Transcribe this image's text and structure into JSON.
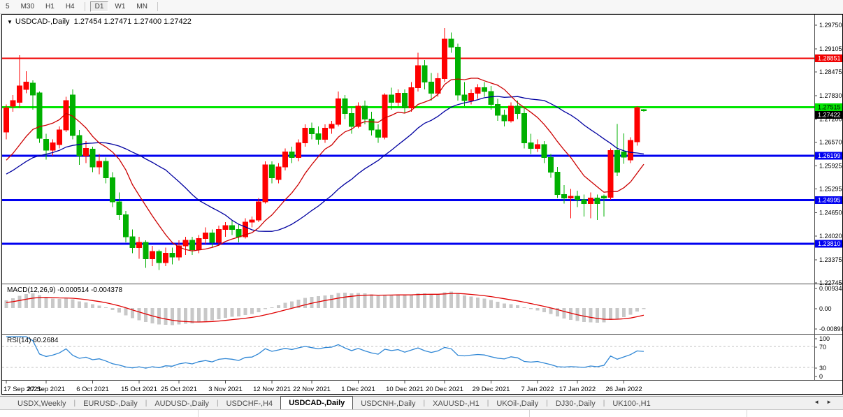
{
  "toolbar": {
    "buttons": [
      {
        "label": "5"
      },
      {
        "label": "M30"
      },
      {
        "label": "H1"
      },
      {
        "label": "H4"
      },
      {
        "sep": true
      },
      {
        "label": "D1",
        "active": true
      },
      {
        "label": "W1"
      },
      {
        "label": "MN"
      },
      {
        "sep": true
      }
    ]
  },
  "window": {
    "dropdown_arrow": "▼",
    "title_symbol": "USDCAD-,Daily",
    "title_ohlc": "1.27454 1.27471 1.27400 1.27422"
  },
  "chart_data": {
    "type": "candlestick",
    "symbol": "USDCAD-,Daily",
    "title": "USDCAD-,Daily 1.27454 1.27471 1.27400 1.27422",
    "current_bar": {
      "open": 1.27454,
      "high": 1.27471,
      "low": 1.274,
      "close": 1.27422
    },
    "y_range": {
      "top": 1.2975,
      "bottom": 1.22745
    },
    "price_axis_ticks": [
      "1.29750",
      "1.29105",
      "1.28475",
      "1.27830",
      "1.27200",
      "1.26570",
      "1.25925",
      "1.25295",
      "1.24650",
      "1.24020",
      "1.23375",
      "1.22745"
    ],
    "price_levels": [
      {
        "price": 1.28851,
        "label": "1.28851",
        "color": "#f00000",
        "line_width": 2,
        "text_color": "#ffffff"
      },
      {
        "price": 1.27515,
        "label": "1.27515",
        "color": "#00e500",
        "line_width": 3,
        "text_color": "#000000"
      },
      {
        "price": 1.26199,
        "label": "1.26199",
        "color": "#0000f0",
        "line_width": 3,
        "text_color": "#ffffff"
      },
      {
        "price": 1.24995,
        "label": "1.24995",
        "color": "#0000f0",
        "line_width": 3,
        "text_color": "#ffffff"
      },
      {
        "price": 1.2381,
        "label": "1.23810",
        "color": "#0000f0",
        "line_width": 3,
        "text_color": "#ffffff"
      }
    ],
    "bid_tag": {
      "price": 1.27422,
      "label": "1.27422",
      "bg": "#000000",
      "text_color": "#ffffff"
    },
    "date_ticks": [
      {
        "index": 0,
        "label": "17 Sep 2021"
      },
      {
        "index": 6,
        "label": "27 Sep 2021"
      },
      {
        "index": 13,
        "label": "6 Oct 2021"
      },
      {
        "index": 20,
        "label": "15 Oct 2021"
      },
      {
        "index": 26,
        "label": "25 Oct 2021"
      },
      {
        "index": 33,
        "label": "3 Nov 2021"
      },
      {
        "index": 40,
        "label": "12 Nov 2021"
      },
      {
        "index": 46,
        "label": "22 Nov 2021"
      },
      {
        "index": 53,
        "label": "1 Dec 2021"
      },
      {
        "index": 60,
        "label": "10 Dec 2021"
      },
      {
        "index": 66,
        "label": "20 Dec 2021"
      },
      {
        "index": 73,
        "label": "29 Dec 2021"
      },
      {
        "index": 80,
        "label": "7 Jan 2022"
      },
      {
        "index": 86,
        "label": "17 Jan 2022"
      },
      {
        "index": 93,
        "label": "26 Jan 2022"
      }
    ],
    "candles_ohlc": [
      [
        1.2685,
        1.276,
        1.2665,
        1.275
      ],
      [
        1.2755,
        1.2785,
        1.274,
        1.277
      ],
      [
        1.2765,
        1.2893,
        1.275,
        1.281
      ],
      [
        1.28,
        1.285,
        1.279,
        1.282
      ],
      [
        1.2817,
        1.2825,
        1.2745,
        1.2785
      ],
      [
        1.2791,
        1.2795,
        1.2655,
        1.2667
      ],
      [
        1.2665,
        1.268,
        1.261,
        1.2635
      ],
      [
        1.2635,
        1.2665,
        1.262,
        1.2655
      ],
      [
        1.265,
        1.27,
        1.264,
        1.269
      ],
      [
        1.269,
        1.278,
        1.2685,
        1.277
      ],
      [
        1.2785,
        1.28,
        1.2665,
        1.2675
      ],
      [
        1.2675,
        1.269,
        1.2595,
        1.262
      ],
      [
        1.262,
        1.266,
        1.26,
        1.264
      ],
      [
        1.2638,
        1.2645,
        1.2575,
        1.259
      ],
      [
        1.259,
        1.2625,
        1.257,
        1.2605
      ],
      [
        1.2605,
        1.2615,
        1.2545,
        1.256
      ],
      [
        1.256,
        1.2575,
        1.248,
        1.2495
      ],
      [
        1.2495,
        1.252,
        1.2445,
        1.246
      ],
      [
        1.246,
        1.247,
        1.2385,
        1.24
      ],
      [
        1.24,
        1.242,
        1.2355,
        1.237
      ],
      [
        1.237,
        1.24,
        1.234,
        1.2385
      ],
      [
        1.2385,
        1.239,
        1.2315,
        1.234
      ],
      [
        1.234,
        1.2375,
        1.232,
        1.236
      ],
      [
        1.236,
        1.2365,
        1.231,
        1.233
      ],
      [
        1.233,
        1.237,
        1.232,
        1.2355
      ],
      [
        1.2355,
        1.237,
        1.2325,
        1.2345
      ],
      [
        1.2345,
        1.239,
        1.2335,
        1.2375
      ],
      [
        1.2375,
        1.24,
        1.235,
        1.239
      ],
      [
        1.239,
        1.24,
        1.235,
        1.2365
      ],
      [
        1.2365,
        1.2405,
        1.2355,
        1.2395
      ],
      [
        1.2395,
        1.2425,
        1.238,
        1.241
      ],
      [
        1.241,
        1.242,
        1.237,
        1.2385
      ],
      [
        1.2385,
        1.243,
        1.2375,
        1.242
      ],
      [
        1.242,
        1.244,
        1.24,
        1.243
      ],
      [
        1.243,
        1.2445,
        1.2405,
        1.242
      ],
      [
        1.242,
        1.2435,
        1.2385,
        1.24
      ],
      [
        1.24,
        1.245,
        1.2395,
        1.244
      ],
      [
        1.244,
        1.2455,
        1.2425,
        1.2445
      ],
      [
        1.2445,
        1.2505,
        1.244,
        1.2495
      ],
      [
        1.2495,
        1.2605,
        1.249,
        1.2595
      ],
      [
        1.2595,
        1.2605,
        1.2545,
        1.256
      ],
      [
        1.2555,
        1.26,
        1.2545,
        1.259
      ],
      [
        1.259,
        1.264,
        1.258,
        1.263
      ],
      [
        1.263,
        1.2645,
        1.26,
        1.2615
      ],
      [
        1.2615,
        1.2665,
        1.2605,
        1.2655
      ],
      [
        1.2655,
        1.2705,
        1.2645,
        1.2695
      ],
      [
        1.2695,
        1.271,
        1.2665,
        1.268
      ],
      [
        1.268,
        1.27,
        1.265,
        1.2665
      ],
      [
        1.2665,
        1.2705,
        1.2655,
        1.2695
      ],
      [
        1.2695,
        1.2715,
        1.268,
        1.2705
      ],
      [
        1.2705,
        1.2795,
        1.27,
        1.2775
      ],
      [
        1.2775,
        1.2785,
        1.272,
        1.2735
      ],
      [
        1.2735,
        1.275,
        1.268,
        1.27
      ],
      [
        1.27,
        1.2765,
        1.2695,
        1.2755
      ],
      [
        1.2755,
        1.277,
        1.2705,
        1.272
      ],
      [
        1.272,
        1.274,
        1.2675,
        1.269
      ],
      [
        1.269,
        1.2705,
        1.2655,
        1.267
      ],
      [
        1.267,
        1.279,
        1.2665,
        1.2785
      ],
      [
        1.2785,
        1.2805,
        1.2745,
        1.2765
      ],
      [
        1.2765,
        1.28,
        1.2755,
        1.279
      ],
      [
        1.279,
        1.28,
        1.2735,
        1.275
      ],
      [
        1.275,
        1.282,
        1.274,
        1.2805
      ],
      [
        1.2805,
        1.29,
        1.2795,
        1.2865
      ],
      [
        1.2865,
        1.288,
        1.28,
        1.282
      ],
      [
        1.282,
        1.2845,
        1.277,
        1.279
      ],
      [
        1.279,
        1.2845,
        1.278,
        1.283
      ],
      [
        1.283,
        1.2967,
        1.282,
        1.2937
      ],
      [
        1.2937,
        1.2955,
        1.29,
        1.2915
      ],
      [
        1.2915,
        1.2925,
        1.277,
        1.2785
      ],
      [
        1.2785,
        1.282,
        1.2755,
        1.277
      ],
      [
        1.277,
        1.28,
        1.276,
        1.279
      ],
      [
        1.279,
        1.2815,
        1.2775,
        1.2805
      ],
      [
        1.2805,
        1.282,
        1.278,
        1.2795
      ],
      [
        1.2795,
        1.281,
        1.2745,
        1.276
      ],
      [
        1.276,
        1.2775,
        1.2715,
        1.273
      ],
      [
        1.273,
        1.2745,
        1.27,
        1.2715
      ],
      [
        1.2715,
        1.2765,
        1.271,
        1.2755
      ],
      [
        1.2755,
        1.277,
        1.272,
        1.2735
      ],
      [
        1.2735,
        1.275,
        1.264,
        1.2655
      ],
      [
        1.2655,
        1.268,
        1.2625,
        1.264
      ],
      [
        1.264,
        1.2665,
        1.263,
        1.265
      ],
      [
        1.265,
        1.266,
        1.26,
        1.2615
      ],
      [
        1.2615,
        1.2625,
        1.256,
        1.2575
      ],
      [
        1.2575,
        1.259,
        1.2505,
        1.2515
      ],
      [
        1.2515,
        1.254,
        1.249,
        1.2505
      ],
      [
        1.2505,
        1.253,
        1.245,
        1.251
      ],
      [
        1.251,
        1.2525,
        1.248,
        1.25
      ],
      [
        1.25,
        1.2515,
        1.2455,
        1.249
      ],
      [
        1.249,
        1.252,
        1.245,
        1.2505
      ],
      [
        1.2505,
        1.2515,
        1.2445,
        1.249
      ],
      [
        1.251,
        1.2515,
        1.2455,
        1.2505
      ],
      [
        1.2507,
        1.264,
        1.25,
        1.2634
      ],
      [
        1.2634,
        1.2706,
        1.2565,
        1.2575
      ],
      [
        1.263,
        1.2681,
        1.2598,
        1.2616
      ],
      [
        1.2609,
        1.267,
        1.26,
        1.2662
      ],
      [
        1.2658,
        1.2755,
        1.2648,
        1.2751
      ],
      [
        1.27454,
        1.27471,
        1.274,
        1.27422
      ]
    ],
    "warmup_closes_for_indicator_continuity": [
      1.248,
      1.247,
      1.2485,
      1.2495,
      1.249,
      1.2505,
      1.2515,
      1.251,
      1.252,
      1.253,
      1.2525,
      1.2535,
      1.2545,
      1.254,
      1.255,
      1.256,
      1.2555,
      1.2565,
      1.2575,
      1.257,
      1.258,
      1.2585,
      1.258,
      1.259,
      1.2595,
      1.259,
      1.2595,
      1.26,
      1.2595,
      1.26
    ],
    "indicators": {
      "ma_fast_period": 10,
      "ma_slow_period": 25,
      "macd": {
        "label": "MACD(12,26,9)",
        "values_text": "-0.000514 -0.004378",
        "fast": 12,
        "slow": 26,
        "signal": 9,
        "axis": {
          "max": "0.009345",
          "zero": "0.00",
          "min": "-0.008903"
        }
      },
      "rsi": {
        "label": "RSI(14)",
        "value_text": "60.2684",
        "period": 14,
        "axis": [
          "100",
          "70",
          "30",
          "0"
        ],
        "levels": [
          70,
          30
        ]
      }
    },
    "colors": {
      "up": "#fe0000",
      "down": "#00b000",
      "ma_fast": "#cc0000",
      "ma_slow": "#0000a0",
      "macd_hist": "#c8c8c8",
      "macd_signal": "#e00000",
      "rsi_line": "#2e86d5",
      "level_dash": "#c0c0c0"
    },
    "layout_hints": {
      "grid": "off",
      "legend": "none",
      "x_axis": "dates bottom",
      "y_axis": "price right"
    }
  },
  "tabs": {
    "items": [
      {
        "label": "USDX,Weekly"
      },
      {
        "label": "EURUSD-,Daily"
      },
      {
        "label": "AUDUSD-,Daily"
      },
      {
        "label": "USDCHF-,H4"
      },
      {
        "label": "USDCAD-,Daily",
        "active": true
      },
      {
        "label": "USDCNH-,Daily"
      },
      {
        "label": "XAUUSD-,H1"
      },
      {
        "label": "UKOil-,Daily"
      },
      {
        "label": "DJ30-,Daily"
      },
      {
        "label": "UK100-,H1"
      }
    ],
    "scroll_left_icon": "◄",
    "scroll_right_icon": "►"
  }
}
